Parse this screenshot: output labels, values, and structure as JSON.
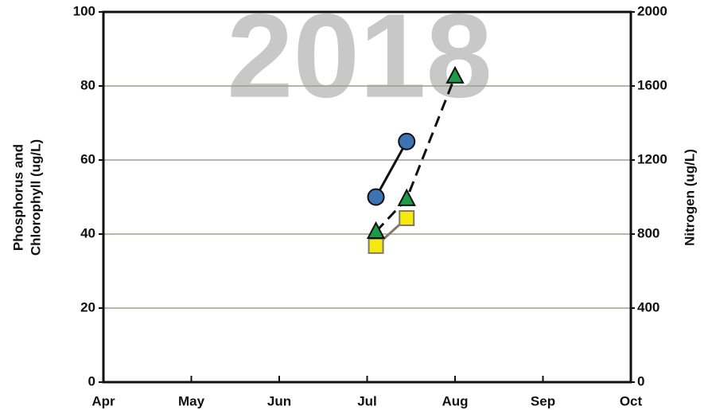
{
  "chart_data": {
    "type": "line",
    "title": "2018",
    "y_label": [
      "Phosphorus and",
      "Chlorophyll (ug/L)"
    ],
    "y2_label": "Nitrogen (ug/L)",
    "xlim": [
      0,
      6
    ],
    "xticks": [
      {
        "value": 0,
        "label": "Apr"
      },
      {
        "value": 1,
        "label": "May"
      },
      {
        "value": 2,
        "label": "Jun"
      },
      {
        "value": 3,
        "label": "Jul"
      },
      {
        "value": 4,
        "label": "Aug"
      },
      {
        "value": 5,
        "label": "Sep"
      },
      {
        "value": 6,
        "label": "Oct"
      }
    ],
    "ylim": [
      0,
      100
    ],
    "yticks": [
      0,
      20,
      40,
      60,
      80,
      100
    ],
    "y2lim": [
      0,
      2000
    ],
    "y2ticks": [
      0,
      400,
      800,
      1200,
      1600,
      2000
    ],
    "grid": true,
    "grid_color": "#a09e88",
    "x": [
      3.1,
      3.45,
      4.0
    ],
    "series": [
      {
        "color": "#3d72b4",
        "line_color": "#111111",
        "marker": "circle",
        "dashed": false,
        "values": [
          50,
          65,
          null
        ]
      },
      {
        "color": "#f5ea10",
        "line_color": "#857866",
        "marker": "square",
        "dashed": false,
        "values": [
          36.8,
          44.3,
          null
        ]
      },
      {
        "color": "#1b9a48",
        "line_color": "#111111",
        "marker": "triangle",
        "dashed": true,
        "axis": "y2",
        "values": [
          813,
          990,
          1652
        ]
      }
    ]
  }
}
